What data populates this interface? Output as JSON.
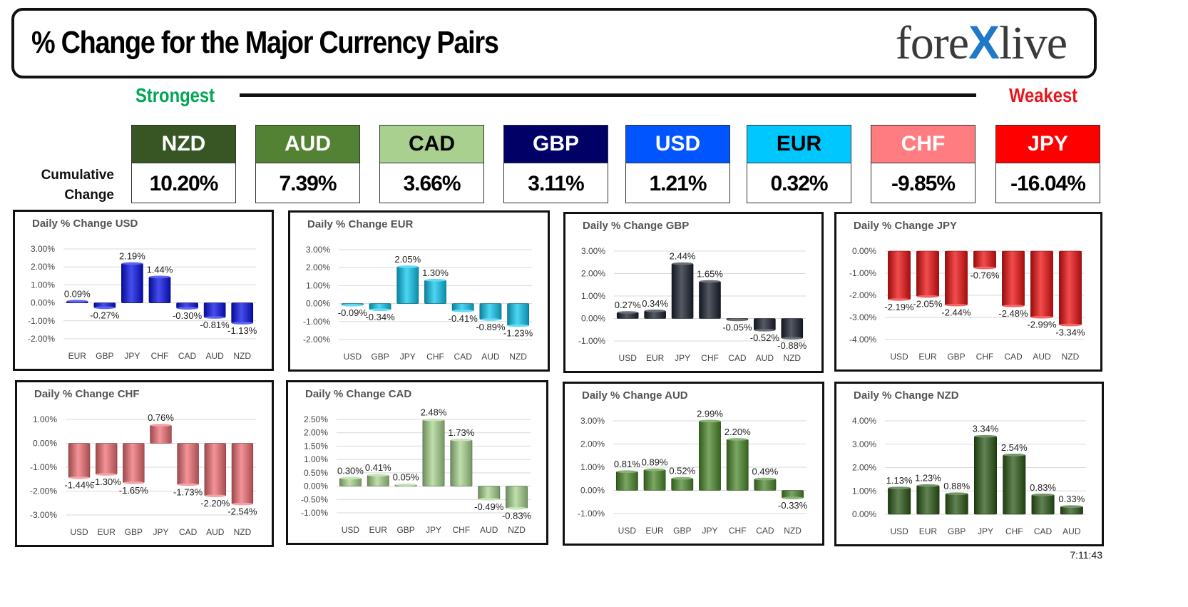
{
  "header": {
    "title": "% Change for the Major Currency Pairs",
    "logo_left": "fore",
    "logo_x": "X",
    "logo_right": "live"
  },
  "strongest_label": "Strongest",
  "weakest_label": "Weakest",
  "cumulative_label_line1": "Cumulative",
  "cumulative_label_line2": "Change",
  "currencies": [
    {
      "code": "NZD",
      "value": "10.20%",
      "bg": "#375623",
      "fg": "#ffffff"
    },
    {
      "code": "AUD",
      "value": "7.39%",
      "bg": "#548235",
      "fg": "#ffffff"
    },
    {
      "code": "CAD",
      "value": "3.66%",
      "bg": "#a9d08e",
      "fg": "#000000"
    },
    {
      "code": "GBP",
      "value": "3.11%",
      "bg": "#000066",
      "fg": "#ffffff"
    },
    {
      "code": "USD",
      "value": "1.21%",
      "bg": "#0055ff",
      "fg": "#ffffff"
    },
    {
      "code": "EUR",
      "value": "0.32%",
      "bg": "#00c8ff",
      "fg": "#000000"
    },
    {
      "code": "CHF",
      "value": "-9.85%",
      "bg": "#ff7c80",
      "fg": "#ffffff"
    },
    {
      "code": "JPY",
      "value": "-16.04%",
      "bg": "#ff0000",
      "fg": "#ffffff"
    }
  ],
  "timestamp": "7:11:43",
  "chart_data": [
    {
      "type": "bar",
      "title": "Daily % Change USD",
      "color": "#0a12e6",
      "categories": [
        "EUR",
        "GBP",
        "JPY",
        "CHF",
        "CAD",
        "AUD",
        "NZD"
      ],
      "values": [
        0.09,
        -0.27,
        2.19,
        1.44,
        -0.3,
        -0.81,
        -1.13
      ],
      "labels": [
        "0.09%",
        "-0.27%",
        "2.19%",
        "1.44%",
        "-0.30%",
        "-0.81%",
        "-1.13%"
      ],
      "ylim": [
        -2,
        3
      ],
      "yticks": [
        3,
        2,
        1,
        0,
        -1,
        -2
      ],
      "ytick_labels": [
        "3.00%",
        "2.00%",
        "1.00%",
        "0.00%",
        "-1.00%",
        "-2.00%"
      ]
    },
    {
      "type": "bar",
      "title": "Daily % Change EUR",
      "color": "#10c8f0",
      "categories": [
        "USD",
        "GBP",
        "JPY",
        "CHF",
        "CAD",
        "AUD",
        "NZD"
      ],
      "values": [
        -0.09,
        -0.34,
        2.05,
        1.3,
        -0.41,
        -0.89,
        -1.23
      ],
      "labels": [
        "-0.09%",
        "-0.34%",
        "2.05%",
        "1.30%",
        "-0.41%",
        "-0.89%",
        "-1.23%"
      ],
      "ylim": [
        -2,
        3
      ],
      "yticks": [
        3,
        2,
        1,
        0,
        -1,
        -2
      ],
      "ytick_labels": [
        "3.00%",
        "2.00%",
        "1.00%",
        "0.00%",
        "-1.00%",
        "-2.00%"
      ]
    },
    {
      "type": "bar",
      "title": "Daily % Change GBP",
      "color": "#1c2230",
      "categories": [
        "USD",
        "EUR",
        "JPY",
        "CHF",
        "CAD",
        "AUD",
        "NZD"
      ],
      "values": [
        0.27,
        0.34,
        2.44,
        1.65,
        -0.05,
        -0.52,
        -0.88
      ],
      "labels": [
        "0.27%",
        "0.34%",
        "2.44%",
        "1.65%",
        "-0.05%",
        "-0.52%",
        "-0.88%"
      ],
      "ylim": [
        -1,
        3
      ],
      "yticks": [
        3,
        2,
        1,
        0,
        -1
      ],
      "ytick_labels": [
        "3.00%",
        "2.00%",
        "1.00%",
        "0.00%",
        "-1.00%"
      ]
    },
    {
      "type": "bar",
      "title": "Daily % Change JPY",
      "color": "#ee1111",
      "categories": [
        "USD",
        "EUR",
        "GBP",
        "CHF",
        "CAD",
        "AUD",
        "NZD"
      ],
      "values": [
        -2.19,
        -2.05,
        -2.44,
        -0.76,
        -2.48,
        -2.99,
        -3.34
      ],
      "labels": [
        "-2.19%",
        "-2.05%",
        "-2.44%",
        "-0.76%",
        "-2.48%",
        "-2.99%",
        "-3.34%"
      ],
      "ylim": [
        -4,
        0
      ],
      "yticks": [
        0,
        -1,
        -2,
        -3,
        -4
      ],
      "ytick_labels": [
        "0.00%",
        "-1.00%",
        "-2.00%",
        "-3.00%",
        "-4.00%"
      ]
    },
    {
      "type": "bar",
      "title": "Daily % Change CHF",
      "color": "#f07076",
      "categories": [
        "USD",
        "EUR",
        "GBP",
        "JPY",
        "CAD",
        "AUD",
        "NZD"
      ],
      "values": [
        -1.44,
        -1.3,
        -1.65,
        0.76,
        -1.73,
        -2.2,
        -2.54
      ],
      "labels": [
        "-1.44%",
        "-1.30%",
        "-1.65%",
        "0.76%",
        "-1.73%",
        "-2.20%",
        "-2.54%"
      ],
      "ylim": [
        -3,
        1
      ],
      "yticks": [
        1,
        0,
        -1,
        -2,
        -3
      ],
      "ytick_labels": [
        "1.00%",
        "0.00%",
        "-1.00%",
        "-2.00%",
        "-3.00%"
      ]
    },
    {
      "type": "bar",
      "title": "Daily % Change CAD",
      "color": "#a9d590",
      "categories": [
        "USD",
        "EUR",
        "GBP",
        "JPY",
        "CHF",
        "AUD",
        "NZD"
      ],
      "values": [
        0.3,
        0.41,
        0.05,
        2.48,
        1.73,
        -0.49,
        -0.83
      ],
      "labels": [
        "0.30%",
        "0.41%",
        "0.05%",
        "2.48%",
        "1.73%",
        "-0.49%",
        "-0.83%"
      ],
      "ylim": [
        -1,
        2.5
      ],
      "yticks": [
        2.5,
        2,
        1.5,
        1,
        0.5,
        0,
        -0.5,
        -1
      ],
      "ytick_labels": [
        "2.50%",
        "2.00%",
        "1.50%",
        "1.00%",
        "0.50%",
        "0.00%",
        "-0.50%",
        "-1.00%"
      ]
    },
    {
      "type": "bar",
      "title": "Daily % Change AUD",
      "color": "#4e8a2e",
      "categories": [
        "USD",
        "EUR",
        "GBP",
        "JPY",
        "CHF",
        "CAD",
        "NZD"
      ],
      "values": [
        0.81,
        0.89,
        0.52,
        2.99,
        2.2,
        0.49,
        -0.33
      ],
      "labels": [
        "0.81%",
        "0.89%",
        "0.52%",
        "2.99%",
        "2.20%",
        "0.49%",
        "-0.33%"
      ],
      "ylim": [
        -1,
        3
      ],
      "yticks": [
        3,
        2,
        1,
        0,
        -1
      ],
      "ytick_labels": [
        "3.00%",
        "2.00%",
        "1.00%",
        "0.00%",
        "-1.00%"
      ]
    },
    {
      "type": "bar",
      "title": "Daily % Change NZD",
      "color": "#2e5a1a",
      "categories": [
        "USD",
        "EUR",
        "GBP",
        "JPY",
        "CHF",
        "CAD",
        "AUD"
      ],
      "values": [
        1.13,
        1.23,
        0.88,
        3.34,
        2.54,
        0.83,
        0.33
      ],
      "labels": [
        "1.13%",
        "1.23%",
        "0.88%",
        "3.34%",
        "2.54%",
        "0.83%",
        "0.33%"
      ],
      "ylim": [
        0,
        4
      ],
      "yticks": [
        4,
        3,
        2,
        1,
        0
      ],
      "ytick_labels": [
        "4.00%",
        "3.00%",
        "2.00%",
        "1.00%",
        "0.00%"
      ]
    }
  ]
}
